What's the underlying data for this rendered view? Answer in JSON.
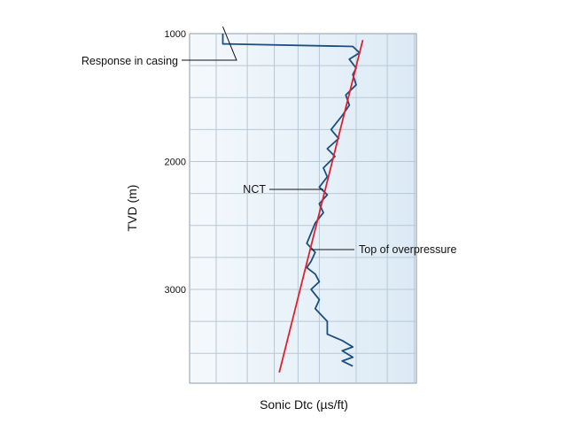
{
  "chart_data": {
    "type": "line",
    "title": "",
    "xlabel": "Sonic Dtc (µs/ft)",
    "ylabel": "TVD (m)",
    "ylim": [
      1000,
      3650
    ],
    "y_inverted": true,
    "yticks": [
      "1000",
      "2000",
      "3000"
    ],
    "ytick_values": [
      1000,
      2000,
      3000
    ],
    "x_scale": "log",
    "xlim": [
      40,
      200
    ],
    "xticks_labeled": false,
    "grid": true,
    "series": [
      {
        "color": "#1b4f7f",
        "points": [
          [
            62,
            1000
          ],
          [
            62,
            1080
          ],
          [
            118,
            1100
          ],
          [
            122,
            1150
          ],
          [
            116,
            1200
          ],
          [
            120,
            1270
          ],
          [
            118,
            1320
          ],
          [
            120,
            1400
          ],
          [
            114,
            1480
          ],
          [
            116,
            1560
          ],
          [
            112,
            1640
          ],
          [
            106,
            1750
          ],
          [
            110,
            1820
          ],
          [
            104,
            1900
          ],
          [
            108,
            1960
          ],
          [
            102,
            2050
          ],
          [
            104,
            2120
          ],
          [
            100,
            2200
          ],
          [
            104,
            2260
          ],
          [
            100,
            2330
          ],
          [
            102,
            2400
          ],
          [
            98,
            2480
          ],
          [
            96,
            2560
          ],
          [
            94,
            2640
          ],
          [
            98,
            2710
          ],
          [
            96,
            2780
          ],
          [
            94,
            2830
          ],
          [
            98,
            2880
          ],
          [
            100,
            2940
          ],
          [
            96,
            3000
          ],
          [
            100,
            3080
          ],
          [
            98,
            3150
          ],
          [
            104,
            3250
          ],
          [
            104,
            3350
          ],
          [
            112,
            3400
          ],
          [
            118,
            3450
          ],
          [
            112,
            3480
          ],
          [
            118,
            3530
          ],
          [
            112,
            3560
          ],
          [
            118,
            3600
          ]
        ]
      },
      {
        "color": "#e02030",
        "points": [
          [
            124,
            1050
          ],
          [
            82,
            3650
          ]
        ]
      }
    ],
    "annotations": [
      {
        "text": "Response in casing",
        "x": 62,
        "y": 1070
      },
      {
        "text": "NCT",
        "x": 102,
        "y": 2290
      },
      {
        "text": "Top of overpressure",
        "x": 96,
        "y": 2790
      }
    ]
  }
}
